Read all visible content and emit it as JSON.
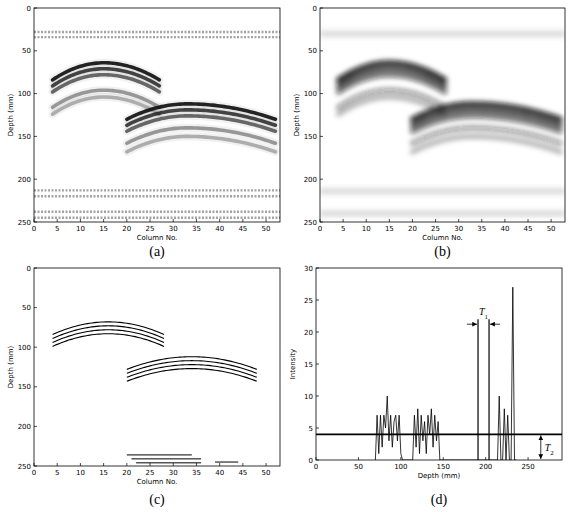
{
  "chart_data": [
    {
      "type": "radargram",
      "label": "(a)",
      "xlabel": "Column No.",
      "ylabel": "Depth (mm)",
      "xlim": [
        0,
        53
      ],
      "ylim": [
        0,
        250
      ],
      "xticks": [
        0,
        5,
        10,
        15,
        20,
        25,
        30,
        35,
        40,
        45,
        50
      ],
      "yticks": [
        0,
        50,
        100,
        150,
        200,
        250
      ],
      "hyperbolas": [
        {
          "apex_column": 15,
          "apex_depth": 64,
          "columns": [
            4,
            27
          ],
          "edge_rise": 20,
          "reflection_depths": [
            64,
            71,
            78,
            96,
            104
          ]
        },
        {
          "apex_column": 33,
          "apex_depth": 112,
          "columns": [
            20,
            52
          ],
          "edge_rise": 18,
          "reflection_depths": [
            112,
            119,
            126,
            140,
            150
          ]
        }
      ],
      "layers": [
        {
          "depth": 28,
          "columns": [
            0,
            53
          ]
        },
        {
          "depth": 34,
          "columns": [
            0,
            53
          ]
        },
        {
          "depth": 213,
          "columns": [
            0,
            53
          ]
        },
        {
          "depth": 220,
          "columns": [
            0,
            53
          ]
        },
        {
          "depth": 238,
          "columns": [
            0,
            53
          ]
        },
        {
          "depth": 245,
          "columns": [
            0,
            53
          ]
        }
      ]
    },
    {
      "type": "smoothed",
      "label": "(b)",
      "xlabel": "Column No.",
      "ylabel": "Depth (mm)",
      "xlim": [
        0,
        53
      ],
      "ylim": [
        0,
        250
      ],
      "xticks": [
        0,
        5,
        10,
        15,
        20,
        25,
        30,
        35,
        40,
        45,
        50
      ],
      "yticks": [
        0,
        50,
        100,
        150,
        200,
        250
      ],
      "hyperbolas": [
        {
          "apex_column": 15,
          "apex_depth": 64,
          "columns": [
            4,
            27
          ],
          "edge_rise": 20,
          "reflection_depths": [
            64,
            71,
            78,
            96,
            104
          ]
        },
        {
          "apex_column": 33,
          "apex_depth": 112,
          "columns": [
            20,
            52
          ],
          "edge_rise": 18,
          "reflection_depths": [
            112,
            119,
            126,
            140,
            150
          ]
        }
      ],
      "layers": [
        {
          "depth": 30,
          "columns": [
            0,
            53
          ]
        },
        {
          "depth": 214,
          "columns": [
            0,
            53
          ]
        },
        {
          "depth": 240,
          "columns": [
            0,
            53
          ]
        }
      ]
    },
    {
      "type": "edges",
      "label": "(c)",
      "xlabel": "Column No.",
      "ylabel": "Depth (mm)",
      "xlim": [
        0,
        53
      ],
      "ylim": [
        0,
        250
      ],
      "xticks": [
        0,
        5,
        10,
        15,
        20,
        25,
        30,
        35,
        40,
        45,
        50
      ],
      "yticks": [
        0,
        50,
        100,
        150,
        200,
        250
      ],
      "hyperbolas": [
        {
          "apex_column": 16,
          "apex_depth": 68,
          "columns": [
            4,
            28
          ],
          "edge_rise": 16,
          "reflection_depths": [
            68,
            73,
            78,
            83
          ]
        },
        {
          "apex_column": 34,
          "apex_depth": 112,
          "columns": [
            20,
            48
          ],
          "edge_rise": 16,
          "reflection_depths": [
            112,
            117,
            122,
            127
          ]
        }
      ],
      "layers": [
        {
          "depth": 236,
          "columns": [
            20,
            34
          ]
        },
        {
          "depth": 241,
          "columns": [
            21,
            36
          ]
        },
        {
          "depth": 246,
          "columns": [
            22,
            36
          ]
        },
        {
          "depth": 245,
          "columns": [
            39,
            44
          ]
        }
      ]
    },
    {
      "type": "line",
      "label": "(d)",
      "xlabel": "Depth (mm)",
      "ylabel": "Intensity",
      "xlim": [
        0,
        290
      ],
      "ylim": [
        0,
        30
      ],
      "xticks": [
        0,
        50,
        100,
        150,
        200,
        250
      ],
      "yticks": [
        0,
        5,
        10,
        15,
        20,
        25,
        30
      ],
      "color": "#000000",
      "x": [
        70,
        72,
        74,
        76,
        78,
        80,
        82,
        84,
        86,
        88,
        90,
        92,
        94,
        96,
        98,
        100,
        102,
        114,
        116,
        118,
        120,
        122,
        124,
        126,
        128,
        130,
        132,
        134,
        136,
        138,
        140,
        142,
        144,
        146,
        214,
        216,
        218,
        220,
        222,
        224,
        226,
        228,
        230,
        232,
        234,
        236
      ],
      "values": [
        0,
        7,
        1,
        7,
        2,
        7,
        5,
        10,
        3,
        7,
        2,
        6,
        7,
        3,
        7,
        1,
        0,
        0,
        7,
        2,
        8,
        1,
        7,
        3,
        6,
        1,
        7,
        4,
        8,
        2,
        7,
        3,
        6,
        0,
        0,
        10,
        0,
        0,
        8,
        0,
        7,
        0,
        0,
        27,
        0,
        0
      ],
      "threshold": 4,
      "annotations": [
        {
          "text": "T",
          "subscript": "1",
          "x": [
            191,
            204
          ],
          "height": 22
        },
        {
          "text": "T",
          "subscript": "2",
          "x": 265
        }
      ]
    }
  ]
}
